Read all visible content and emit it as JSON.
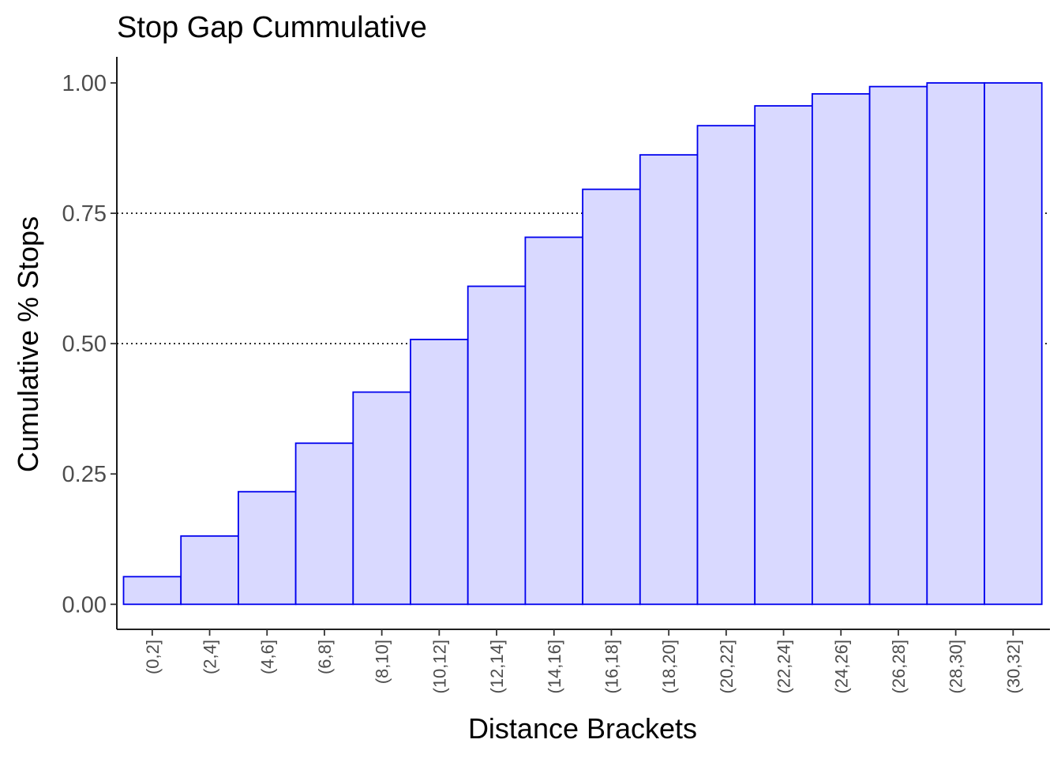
{
  "chart_data": {
    "type": "bar",
    "title": "Stop Gap Cummulative",
    "xlabel": "Distance Brackets",
    "ylabel": "Cumulative % Stops",
    "categories": [
      "(0,2]",
      "(2,4]",
      "(4,6]",
      "(6,8]",
      "(8,10]",
      "(10,12]",
      "(12,14]",
      "(14,16]",
      "(16,18]",
      "(18,20]",
      "(20,22]",
      "(22,24]",
      "(24,26]",
      "(26,28]",
      "(28,30]",
      "(30,32]"
    ],
    "values": [
      0.053,
      0.131,
      0.216,
      0.309,
      0.407,
      0.508,
      0.61,
      0.704,
      0.796,
      0.862,
      0.918,
      0.956,
      0.979,
      0.993,
      1.0,
      1.0
    ],
    "ylim": [
      -0.048,
      1.05
    ],
    "yticks": [
      0.0,
      0.25,
      0.5,
      0.75,
      1.0
    ],
    "ytick_labels": [
      "0.00",
      "0.25",
      "0.50",
      "0.75",
      "1.00"
    ],
    "reference_lines": [
      0.5,
      0.75
    ],
    "reference_line_style": "dotted",
    "bar_fill": "#d9d9ff",
    "bar_stroke": "#0000ee",
    "grid": false
  }
}
